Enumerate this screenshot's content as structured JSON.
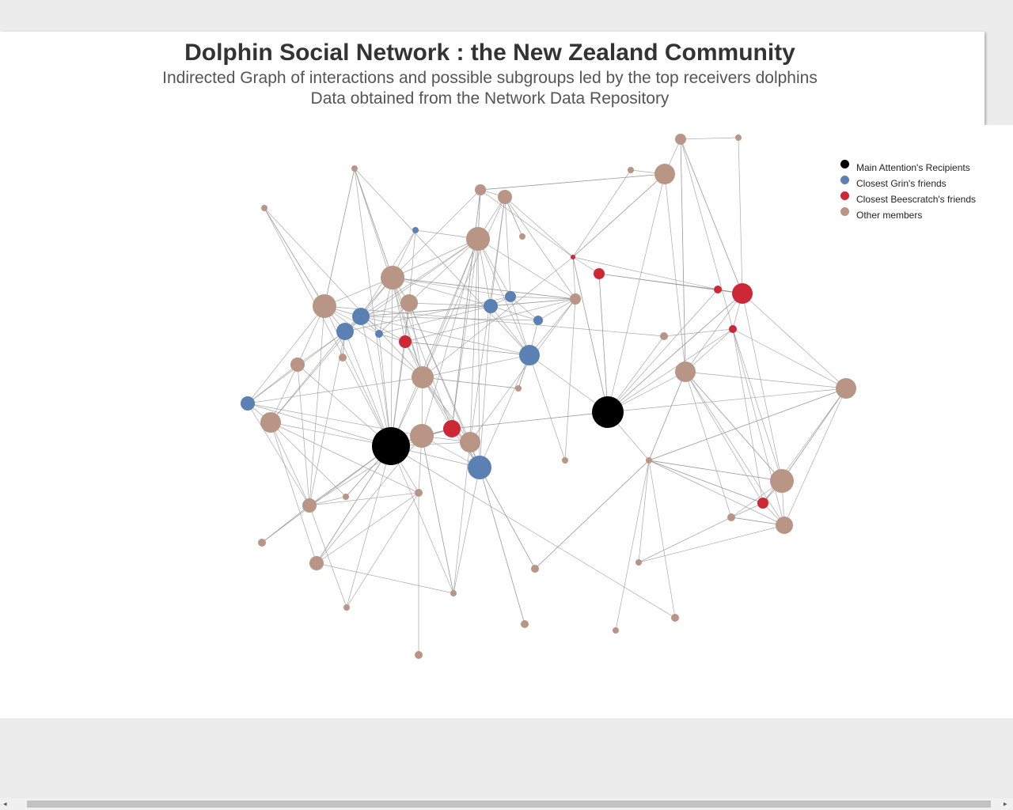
{
  "title": "Dolphin Social Network : the New Zealand Community",
  "subtitle_1": "Indirected Graph of interactions and possible subgroups led by the top receivers dolphins",
  "subtitle_2": "Data obtained from the Network Data Repository",
  "colors": {
    "main": "#000000",
    "grin": "#5b80b4",
    "beescratch": "#cc2836",
    "other": "#b89585",
    "edge": "#9a9a9a"
  },
  "legend": [
    {
      "group": "main",
      "label": "Main Attention's Recipients"
    },
    {
      "group": "grin",
      "label": "Closest Grin's friends"
    },
    {
      "group": "beescratch",
      "label": "Closest Beescratch's friends"
    },
    {
      "group": "other",
      "label": "Other members"
    }
  ],
  "scrollbar": {
    "left_arrow": "◂",
    "right_arrow": "▸"
  }
}
